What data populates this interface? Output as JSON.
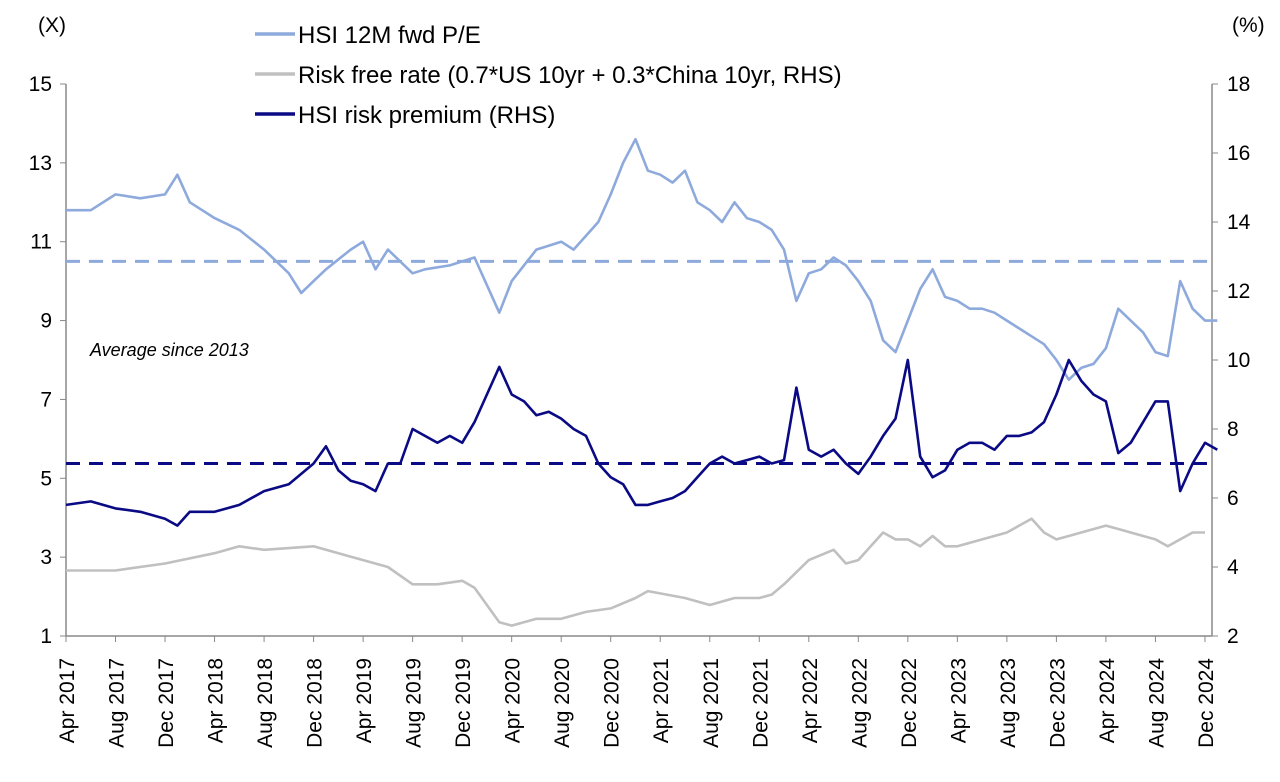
{
  "chart_data": {
    "type": "line",
    "title": "",
    "left_axis": {
      "label": "(X)",
      "range": [
        1,
        15
      ],
      "ticks": [
        1,
        3,
        5,
        7,
        9,
        11,
        13,
        15
      ]
    },
    "right_axis": {
      "label": "(%)",
      "range": [
        2,
        18
      ],
      "ticks": [
        2,
        4,
        6,
        8,
        10,
        12,
        14,
        16,
        18
      ]
    },
    "x_tick_labels": [
      "Apr 2017",
      "Aug 2017",
      "Dec 2017",
      "Apr 2018",
      "Aug 2018",
      "Dec 2018",
      "Apr 2019",
      "Aug 2019",
      "Dec 2019",
      "Apr 2020",
      "Aug 2020",
      "Dec 2020",
      "Apr 2021",
      "Aug 2021",
      "Dec 2021",
      "Apr 2022",
      "Aug 2022",
      "Dec 2022",
      "Apr 2023",
      "Aug 2023",
      "Dec 2023",
      "Apr 2024",
      "Aug 2024",
      "Dec 2024"
    ],
    "x_start": "2017-04",
    "grid": false,
    "legend_position": "top",
    "annotation": "Average since 2013",
    "series": [
      {
        "name": "HSI 12M fwd P/E",
        "axis": "left",
        "color": "#8eaadc",
        "average": 10.5,
        "values": [
          [
            "2017-04",
            11.8
          ],
          [
            "2017-06",
            11.8
          ],
          [
            "2017-08",
            12.2
          ],
          [
            "2017-10",
            12.1
          ],
          [
            "2017-12",
            12.2
          ],
          [
            "2018-01",
            12.7
          ],
          [
            "2018-02",
            12.0
          ],
          [
            "2018-03",
            11.8
          ],
          [
            "2018-04",
            11.6
          ],
          [
            "2018-06",
            11.3
          ],
          [
            "2018-08",
            10.8
          ],
          [
            "2018-10",
            10.2
          ],
          [
            "2018-11",
            9.7
          ],
          [
            "2018-12",
            10.0
          ],
          [
            "2019-01",
            10.3
          ],
          [
            "2019-03",
            10.8
          ],
          [
            "2019-04",
            11.0
          ],
          [
            "2019-05",
            10.3
          ],
          [
            "2019-06",
            10.8
          ],
          [
            "2019-08",
            10.2
          ],
          [
            "2019-09",
            10.3
          ],
          [
            "2019-11",
            10.4
          ],
          [
            "2019-12",
            10.5
          ],
          [
            "2020-01",
            10.6
          ],
          [
            "2020-03",
            9.2
          ],
          [
            "2020-04",
            10.0
          ],
          [
            "2020-06",
            10.8
          ],
          [
            "2020-08",
            11.0
          ],
          [
            "2020-09",
            10.8
          ],
          [
            "2020-11",
            11.5
          ],
          [
            "2020-12",
            12.2
          ],
          [
            "2021-01",
            13.0
          ],
          [
            "2021-02",
            13.6
          ],
          [
            "2021-03",
            12.8
          ],
          [
            "2021-04",
            12.7
          ],
          [
            "2021-05",
            12.5
          ],
          [
            "2021-06",
            12.8
          ],
          [
            "2021-07",
            12.0
          ],
          [
            "2021-08",
            11.8
          ],
          [
            "2021-09",
            11.5
          ],
          [
            "2021-10",
            12.0
          ],
          [
            "2021-11",
            11.6
          ],
          [
            "2021-12",
            11.5
          ],
          [
            "2022-01",
            11.3
          ],
          [
            "2022-02",
            10.8
          ],
          [
            "2022-03",
            9.5
          ],
          [
            "2022-04",
            10.2
          ],
          [
            "2022-05",
            10.3
          ],
          [
            "2022-06",
            10.6
          ],
          [
            "2022-07",
            10.4
          ],
          [
            "2022-08",
            10.0
          ],
          [
            "2022-09",
            9.5
          ],
          [
            "2022-10",
            8.5
          ],
          [
            "2022-11",
            8.2
          ],
          [
            "2022-12",
            9.0
          ],
          [
            "2023-01",
            9.8
          ],
          [
            "2023-02",
            10.3
          ],
          [
            "2023-03",
            9.6
          ],
          [
            "2023-04",
            9.5
          ],
          [
            "2023-05",
            9.3
          ],
          [
            "2023-06",
            9.3
          ],
          [
            "2023-07",
            9.2
          ],
          [
            "2023-08",
            9.0
          ],
          [
            "2023-09",
            8.8
          ],
          [
            "2023-10",
            8.6
          ],
          [
            "2023-11",
            8.4
          ],
          [
            "2023-12",
            8.0
          ],
          [
            "2024-01",
            7.5
          ],
          [
            "2024-02",
            7.8
          ],
          [
            "2024-03",
            7.9
          ],
          [
            "2024-04",
            8.3
          ],
          [
            "2024-05",
            9.3
          ],
          [
            "2024-06",
            9.0
          ],
          [
            "2024-07",
            8.7
          ],
          [
            "2024-08",
            8.2
          ],
          [
            "2024-09",
            8.1
          ],
          [
            "2024-10",
            10.0
          ],
          [
            "2024-11",
            9.3
          ],
          [
            "2024-12",
            9.0
          ],
          [
            "2025-01",
            9.0
          ]
        ]
      },
      {
        "name": "Risk free rate (0.7*US 10yr + 0.3*China 10yr, RHS)",
        "axis": "right",
        "color": "#c0c0c0",
        "values": [
          [
            "2017-04",
            3.9
          ],
          [
            "2017-08",
            3.9
          ],
          [
            "2017-12",
            4.1
          ],
          [
            "2018-04",
            4.4
          ],
          [
            "2018-06",
            4.6
          ],
          [
            "2018-08",
            4.5
          ],
          [
            "2018-12",
            4.6
          ],
          [
            "2019-02",
            4.4
          ],
          [
            "2019-04",
            4.2
          ],
          [
            "2019-06",
            4.0
          ],
          [
            "2019-08",
            3.5
          ],
          [
            "2019-10",
            3.5
          ],
          [
            "2019-12",
            3.6
          ],
          [
            "2020-01",
            3.4
          ],
          [
            "2020-03",
            2.4
          ],
          [
            "2020-04",
            2.3
          ],
          [
            "2020-06",
            2.5
          ],
          [
            "2020-08",
            2.5
          ],
          [
            "2020-10",
            2.7
          ],
          [
            "2020-12",
            2.8
          ],
          [
            "2021-02",
            3.1
          ],
          [
            "2021-03",
            3.3
          ],
          [
            "2021-06",
            3.1
          ],
          [
            "2021-08",
            2.9
          ],
          [
            "2021-10",
            3.1
          ],
          [
            "2021-12",
            3.1
          ],
          [
            "2022-01",
            3.2
          ],
          [
            "2022-02",
            3.5
          ],
          [
            "2022-04",
            4.2
          ],
          [
            "2022-06",
            4.5
          ],
          [
            "2022-07",
            4.1
          ],
          [
            "2022-08",
            4.2
          ],
          [
            "2022-09",
            4.6
          ],
          [
            "2022-10",
            5.0
          ],
          [
            "2022-11",
            4.8
          ],
          [
            "2022-12",
            4.8
          ],
          [
            "2023-01",
            4.6
          ],
          [
            "2023-02",
            4.9
          ],
          [
            "2023-03",
            4.6
          ],
          [
            "2023-04",
            4.6
          ],
          [
            "2023-06",
            4.8
          ],
          [
            "2023-08",
            5.0
          ],
          [
            "2023-10",
            5.4
          ],
          [
            "2023-11",
            5.0
          ],
          [
            "2023-12",
            4.8
          ],
          [
            "2024-01",
            4.9
          ],
          [
            "2024-02",
            5.0
          ],
          [
            "2024-04",
            5.2
          ],
          [
            "2024-05",
            5.1
          ],
          [
            "2024-06",
            5.0
          ],
          [
            "2024-08",
            4.8
          ],
          [
            "2024-09",
            4.6
          ],
          [
            "2024-10",
            4.8
          ],
          [
            "2024-11",
            5.0
          ],
          [
            "2024-12",
            5.0
          ]
        ]
      },
      {
        "name": "HSI risk premium (RHS)",
        "axis": "right",
        "color": "#0a0a85",
        "average": 7.0,
        "values": [
          [
            "2017-04",
            5.8
          ],
          [
            "2017-06",
            5.9
          ],
          [
            "2017-08",
            5.7
          ],
          [
            "2017-10",
            5.6
          ],
          [
            "2017-12",
            5.4
          ],
          [
            "2018-01",
            5.2
          ],
          [
            "2018-02",
            5.6
          ],
          [
            "2018-04",
            5.6
          ],
          [
            "2018-06",
            5.8
          ],
          [
            "2018-08",
            6.2
          ],
          [
            "2018-10",
            6.4
          ],
          [
            "2018-12",
            7.0
          ],
          [
            "2019-01",
            7.5
          ],
          [
            "2019-02",
            6.8
          ],
          [
            "2019-03",
            6.5
          ],
          [
            "2019-04",
            6.4
          ],
          [
            "2019-05",
            6.2
          ],
          [
            "2019-06",
            7.0
          ],
          [
            "2019-07",
            7.0
          ],
          [
            "2019-08",
            8.0
          ],
          [
            "2019-09",
            7.8
          ],
          [
            "2019-10",
            7.6
          ],
          [
            "2019-11",
            7.8
          ],
          [
            "2019-12",
            7.6
          ],
          [
            "2020-01",
            8.2
          ],
          [
            "2020-02",
            9.0
          ],
          [
            "2020-03",
            9.8
          ],
          [
            "2020-04",
            9.0
          ],
          [
            "2020-05",
            8.8
          ],
          [
            "2020-06",
            8.4
          ],
          [
            "2020-07",
            8.5
          ],
          [
            "2020-08",
            8.3
          ],
          [
            "2020-09",
            8.0
          ],
          [
            "2020-10",
            7.8
          ],
          [
            "2020-11",
            7.0
          ],
          [
            "2020-12",
            6.6
          ],
          [
            "2021-01",
            6.4
          ],
          [
            "2021-02",
            5.8
          ],
          [
            "2021-03",
            5.8
          ],
          [
            "2021-04",
            5.9
          ],
          [
            "2021-05",
            6.0
          ],
          [
            "2021-06",
            6.2
          ],
          [
            "2021-07",
            6.6
          ],
          [
            "2021-08",
            7.0
          ],
          [
            "2021-09",
            7.2
          ],
          [
            "2021-10",
            7.0
          ],
          [
            "2021-11",
            7.1
          ],
          [
            "2021-12",
            7.2
          ],
          [
            "2022-01",
            7.0
          ],
          [
            "2022-02",
            7.1
          ],
          [
            "2022-03",
            9.2
          ],
          [
            "2022-04",
            7.4
          ],
          [
            "2022-05",
            7.2
          ],
          [
            "2022-06",
            7.4
          ],
          [
            "2022-07",
            7.0
          ],
          [
            "2022-08",
            6.7
          ],
          [
            "2022-09",
            7.2
          ],
          [
            "2022-10",
            7.8
          ],
          [
            "2022-11",
            8.3
          ],
          [
            "2022-12",
            10.0
          ],
          [
            "2023-01",
            7.2
          ],
          [
            "2023-02",
            6.6
          ],
          [
            "2023-03",
            6.8
          ],
          [
            "2023-04",
            7.4
          ],
          [
            "2023-05",
            7.6
          ],
          [
            "2023-06",
            7.6
          ],
          [
            "2023-07",
            7.4
          ],
          [
            "2023-08",
            7.8
          ],
          [
            "2023-09",
            7.8
          ],
          [
            "2023-10",
            7.9
          ],
          [
            "2023-11",
            8.2
          ],
          [
            "2023-12",
            9.0
          ],
          [
            "2024-01",
            10.0
          ],
          [
            "2024-02",
            9.4
          ],
          [
            "2024-03",
            9.0
          ],
          [
            "2024-04",
            8.8
          ],
          [
            "2024-05",
            7.3
          ],
          [
            "2024-06",
            7.6
          ],
          [
            "2024-07",
            8.2
          ],
          [
            "2024-08",
            8.8
          ],
          [
            "2024-09",
            8.8
          ],
          [
            "2024-10",
            6.2
          ],
          [
            "2024-11",
            7.0
          ],
          [
            "2024-12",
            7.6
          ],
          [
            "2025-01",
            7.4
          ]
        ]
      }
    ]
  }
}
